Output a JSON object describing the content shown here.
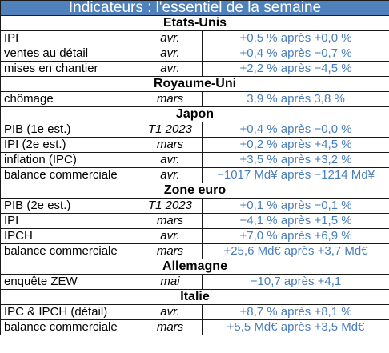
{
  "title": "Indicateurs : l'essentiel de la semaine",
  "colors": {
    "banner": "#4f81bd",
    "values": "#4a7ebb"
  },
  "sections": [
    {
      "name": "Etats-Unis",
      "rows": [
        {
          "indicator": "IPI",
          "period": "avr.",
          "value": "+0,5 % après +0,0 %"
        },
        {
          "indicator": "ventes au détail",
          "period": "avr.",
          "value": "+0,4 % après −0,7 %"
        },
        {
          "indicator": "mises en chantier",
          "period": "avr.",
          "value": "+2,2 % après −4,5 %"
        }
      ]
    },
    {
      "name": "Royaume-Uni",
      "rows": [
        {
          "indicator": "chômage",
          "period": "mars",
          "value": "3,9 % après 3,8 %"
        }
      ]
    },
    {
      "name": "Japon",
      "rows": [
        {
          "indicator": "PIB (1e est.)",
          "period": "T1 2023",
          "value": "+0,4 % après −0,0 %"
        },
        {
          "indicator": "IPI (2e est.)",
          "period": "mars",
          "value": "+0,2 % après +4,5 %"
        },
        {
          "indicator": "inflation (IPC)",
          "period": "avr.",
          "value": "+3,5 % après +3,2 %"
        },
        {
          "indicator": "balance commerciale",
          "period": "avr.",
          "value": "−1017 Md¥ après −1214 Md¥"
        }
      ]
    },
    {
      "name": "Zone euro",
      "rows": [
        {
          "indicator": "PIB (2e est.)",
          "period": "T1 2023",
          "value": "+0,1 % après −0,1 %"
        },
        {
          "indicator": "IPI",
          "period": "mars",
          "value": "−4,1 % après +1,5 %"
        },
        {
          "indicator": "IPCH",
          "period": "avr.",
          "value": "+7,0 % après +6,9 %"
        },
        {
          "indicator": "balance commerciale",
          "period": "mars",
          "value": "+25,6 Md€ après +3,7 Md€"
        }
      ]
    },
    {
      "name": "Allemagne",
      "rows": [
        {
          "indicator": "enquête ZEW",
          "period": "mai",
          "value": "−10,7 après +4,1"
        }
      ]
    },
    {
      "name": "Italie",
      "rows": [
        {
          "indicator": "IPC & IPCH (détail)",
          "period": "avr.",
          "value": "+8,7 % après +8,1 %"
        },
        {
          "indicator": "balance commerciale",
          "period": "mars",
          "value": "+5,5 Md€ après +3,5 Md€"
        }
      ]
    }
  ]
}
